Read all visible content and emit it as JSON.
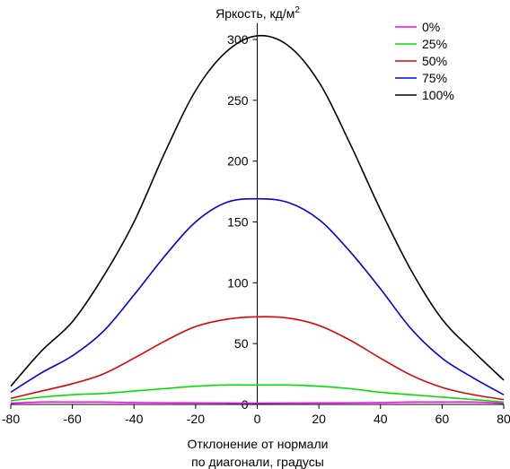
{
  "chart_data": {
    "type": "line",
    "ylabel": "Яркость, кд/м",
    "ylabel_sup": "2",
    "xlabel_line1": "Отклонение от нормали",
    "xlabel_line2": "по диагонали, градусы",
    "xlim": [
      -80,
      80
    ],
    "ylim": [
      0,
      310
    ],
    "x_ticks": [
      -80,
      -60,
      -40,
      -20,
      0,
      20,
      40,
      60,
      80
    ],
    "y_ticks": [
      0,
      50,
      100,
      150,
      200,
      250,
      300
    ],
    "grid": false,
    "legend_position": "top-right",
    "x": [
      -80,
      -70,
      -60,
      -50,
      -40,
      -30,
      -20,
      -10,
      0,
      10,
      20,
      30,
      40,
      50,
      60,
      70,
      80
    ],
    "series": [
      {
        "name": "0%",
        "color": "#ff00ff",
        "values": [
          1,
          2,
          2,
          2,
          1.5,
          1.3,
          1.2,
          1.1,
          1,
          1.1,
          1.2,
          1.3,
          1.5,
          2,
          2,
          2,
          1
        ]
      },
      {
        "name": "25%",
        "color": "#00e000",
        "values": [
          3,
          6,
          8,
          9,
          11,
          13,
          15,
          16,
          16,
          16,
          15,
          13,
          10,
          8,
          6,
          4,
          2
        ]
      },
      {
        "name": "50%",
        "color": "#e00000",
        "values": [
          5,
          11,
          17,
          25,
          38,
          52,
          64,
          70,
          72,
          71,
          65,
          53,
          38,
          24,
          14,
          8,
          4
        ]
      },
      {
        "name": "75%",
        "color": "#0000e0",
        "values": [
          10,
          26,
          40,
          60,
          90,
          122,
          150,
          166,
          169,
          166,
          152,
          126,
          95,
          62,
          38,
          22,
          8
        ]
      },
      {
        "name": "100%",
        "color": "#000000",
        "values": [
          15,
          44,
          68,
          105,
          150,
          207,
          258,
          290,
          303,
          295,
          265,
          215,
          160,
          110,
          70,
          44,
          20
        ]
      }
    ]
  }
}
